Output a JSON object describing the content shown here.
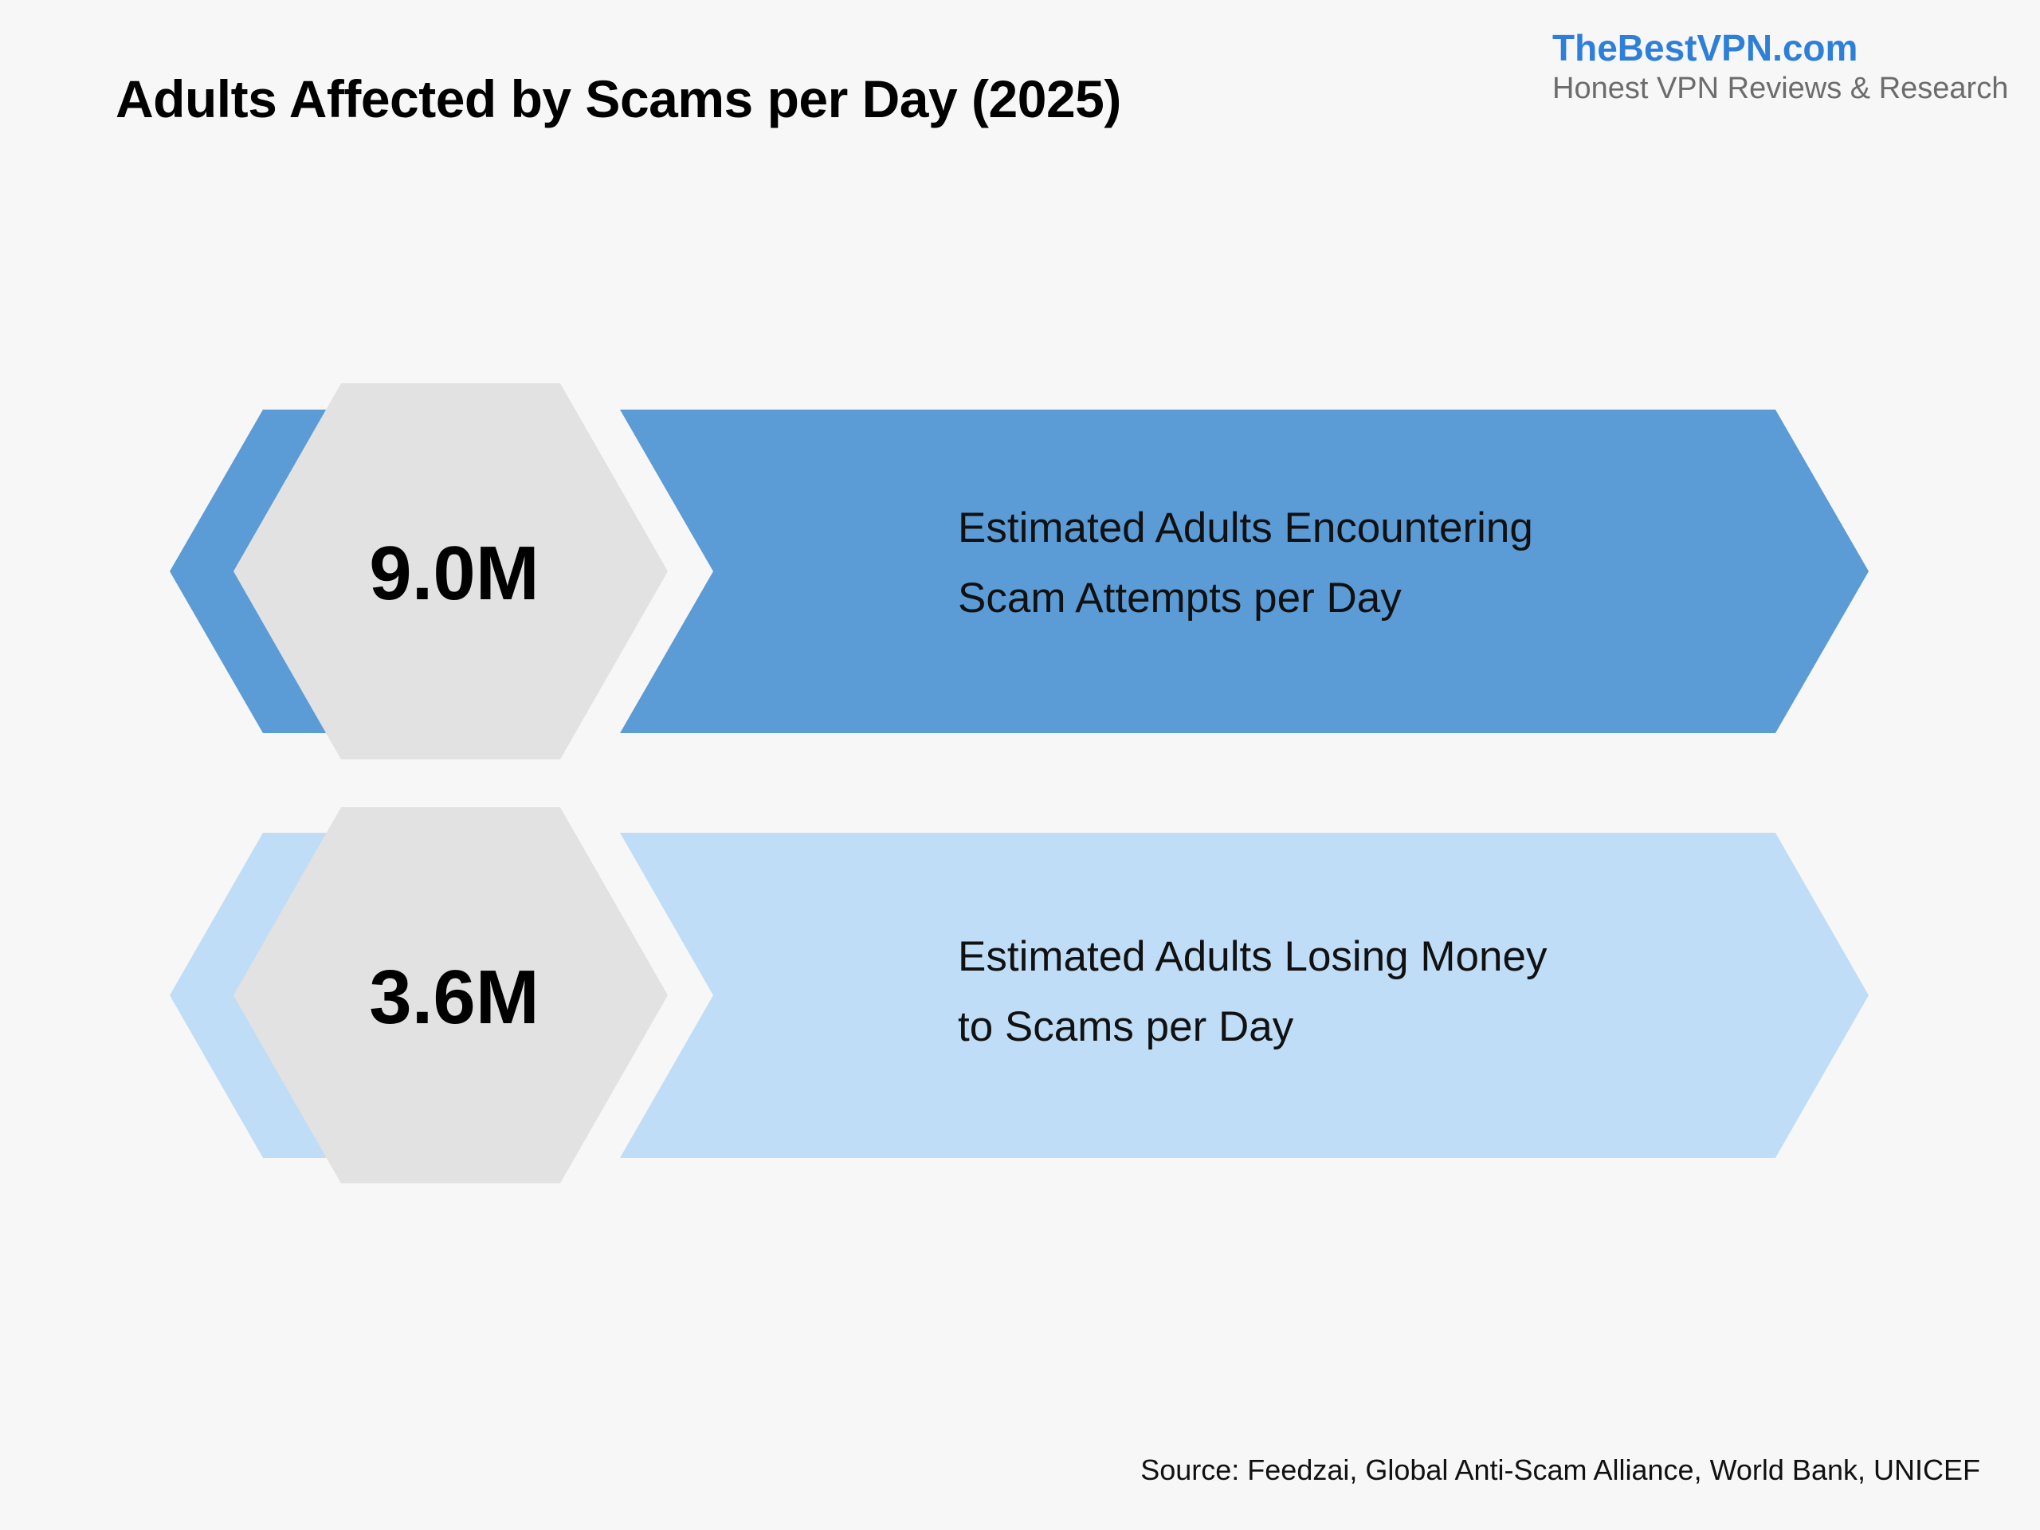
{
  "header": {
    "title": "Adults Affected by Scams per Day (2025)"
  },
  "brand": {
    "name": "TheBestVPN.com",
    "tagline": "Honest VPN Reviews & Research"
  },
  "stats": [
    {
      "value": "9.0M",
      "label_line1": "Estimated Adults Encountering",
      "label_line2": "Scam Attempts per Day",
      "color": "#5b9bd6"
    },
    {
      "value": "3.6M",
      "label_line1": "Estimated Adults Losing Money",
      "label_line2": "to Scams per Day",
      "color": "#bfddf6"
    }
  ],
  "hexagon_color": "#e2e2e2",
  "footer": {
    "source": "Source: Feedzai, Global Anti-Scam Alliance, World Bank, UNICEF"
  }
}
